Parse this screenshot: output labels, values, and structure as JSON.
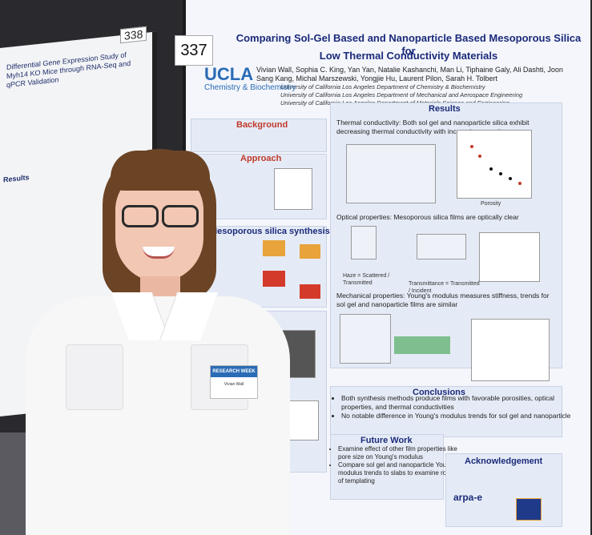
{
  "left_poster": {
    "number": "338",
    "title": "Differential Gene Expression Study of Myh14 KO Mice through RNA-Seq and qPCR Validation",
    "section_results": "Results"
  },
  "poster": {
    "number": "337",
    "title_line1": "Comparing Sol-Gel Based and Nanoparticle Based Mesoporous Silica for",
    "title_line2": "Low Thermal Conductivity Materials",
    "authors": "Vivian Wall, Sophia C. King, Yan Yan, Natalie Kashanchi, Man Li, Tiphaine Galy, Ali Dashti, Joon Sang Kang, Michal Marszewski, Yongjie Hu, Laurent Pilon, Sarah H. Tolbert",
    "affiliations": [
      "University of California Los Angeles Department of Chemistry & Biochemistry",
      "University of California Los Angeles Department of Mechanical and Aerospace Engineering",
      "University of California Los Angeles Department of Materials Science and Engineering"
    ],
    "ucla_logo": "UCLA",
    "ucla_sub": "Chemistry & Biochemistry",
    "background_head": "Background",
    "approach_head": "Approach",
    "synthesis_head": "Mesoporous silica synthesis methods:",
    "results_head": "Results",
    "thermal_text": "Thermal conductivity: Both sol gel and nanoparticle silica exhibit decreasing thermal conductivity with increasing porosity",
    "optical_text": "Optical properties: Mesoporous silica films are optically clear",
    "mechanical_text": "Mechanical properties: Young's modulus measures stiffness, trends for sol gel and nanoparticle films are similar",
    "haze_label": "Haze = Scattered / Transmitted",
    "transmittance_label": "Transmittance = Transmitted / Incident",
    "conclusions_head": "Conclusions",
    "conclusions": [
      "Both synthesis methods produce films with favorable porosities, optical properties, and thermal conductivities",
      "No notable difference in Young's modulus trends for sol gel and nanoparticle"
    ],
    "future_head": "Future Work",
    "future": [
      "Examine effect of other film properties like pore size on Young's modulus",
      "Compare sol gel and nanoparticle Young's modulus trends to slabs to examine role of templating"
    ],
    "ack_head": "Acknowledgement",
    "arpa_logo": "arpa-e",
    "porosity_label": "Porosity"
  },
  "badge": {
    "top": "RESEARCH WEEK",
    "name": "Vivian Wall"
  },
  "colors": {
    "title_blue": "#1a2a7a",
    "section_red": "#c0392b",
    "ucla_blue": "#2a6bb5"
  }
}
